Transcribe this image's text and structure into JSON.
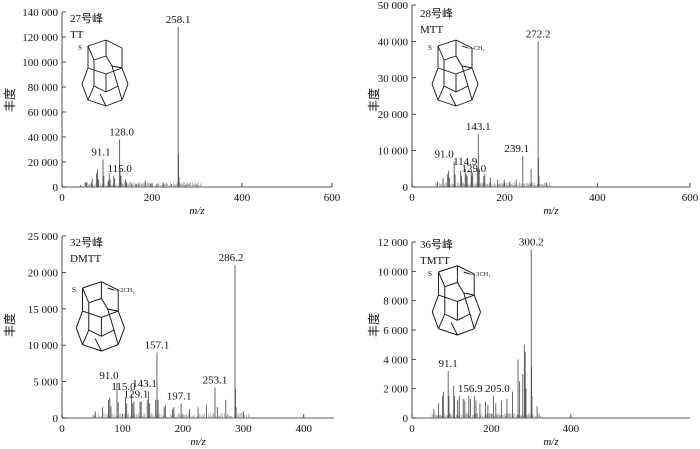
{
  "chart_data": [
    {
      "type": "bar",
      "peak_label": "27号峰",
      "compound": "TT",
      "substituent": "",
      "xlabel": "m/z",
      "ylabel": "丰度",
      "xlim": [
        0,
        600
      ],
      "ylim": [
        0,
        140000
      ],
      "xticks": [
        0,
        200,
        400,
        600
      ],
      "yticks": [
        0,
        20000,
        40000,
        60000,
        80000,
        100000,
        120000,
        140000
      ],
      "ytick_labels": [
        "0",
        "20 000",
        "40 000",
        "60 000",
        "80 000",
        "100 000",
        "120 000",
        "140 000"
      ],
      "annotations": [
        {
          "label": "258.1",
          "x": 258.1,
          "y": 128000
        },
        {
          "label": "128.0",
          "x": 128.0,
          "y": 38000
        },
        {
          "label": "91.1",
          "x": 91.1,
          "y": 22000
        },
        {
          "label": "115.0",
          "x": 115.0,
          "y": 9000
        }
      ],
      "peaks": [
        {
          "x": 41,
          "y": 1500
        },
        {
          "x": 53,
          "y": 3000
        },
        {
          "x": 55,
          "y": 4000
        },
        {
          "x": 65,
          "y": 3500
        },
        {
          "x": 67,
          "y": 7000
        },
        {
          "x": 77,
          "y": 11000
        },
        {
          "x": 79,
          "y": 14000
        },
        {
          "x": 81,
          "y": 6000
        },
        {
          "x": 91.1,
          "y": 22000
        },
        {
          "x": 93,
          "y": 9000
        },
        {
          "x": 103,
          "y": 5000
        },
        {
          "x": 105,
          "y": 11000
        },
        {
          "x": 107,
          "y": 6000
        },
        {
          "x": 115.0,
          "y": 9000
        },
        {
          "x": 117,
          "y": 7000
        },
        {
          "x": 128.0,
          "y": 38000
        },
        {
          "x": 129,
          "y": 15000
        },
        {
          "x": 131,
          "y": 9000
        },
        {
          "x": 141,
          "y": 6000
        },
        {
          "x": 143,
          "y": 4000
        },
        {
          "x": 155,
          "y": 3000
        },
        {
          "x": 165,
          "y": 2500
        },
        {
          "x": 171,
          "y": 2000
        },
        {
          "x": 185,
          "y": 5000
        },
        {
          "x": 197,
          "y": 2500
        },
        {
          "x": 211,
          "y": 2000
        },
        {
          "x": 225,
          "y": 3000
        },
        {
          "x": 243,
          "y": 2500
        },
        {
          "x": 258.1,
          "y": 128000
        },
        {
          "x": 259,
          "y": 26000
        },
        {
          "x": 260,
          "y": 8000
        },
        {
          "x": 275,
          "y": 1500
        },
        {
          "x": 300,
          "y": 1200
        }
      ]
    },
    {
      "type": "bar",
      "peak_label": "28号峰",
      "compound": "MTT",
      "substituent": "—CH₃",
      "xlabel": "m/z",
      "ylabel": "丰度",
      "xlim": [
        0,
        600
      ],
      "ylim": [
        0,
        50000
      ],
      "xticks": [
        0,
        200,
        400,
        600
      ],
      "yticks": [
        0,
        10000,
        20000,
        30000,
        40000,
        50000
      ],
      "ytick_labels": [
        "0",
        "10 000",
        "20 000",
        "30 000",
        "40 000",
        "50 000"
      ],
      "annotations": [
        {
          "label": "272.2",
          "x": 272.2,
          "y": 40000
        },
        {
          "label": "143.1",
          "x": 143.1,
          "y": 14500
        },
        {
          "label": "239.1",
          "x": 239.1,
          "y": 8500
        },
        {
          "label": "91.0",
          "x": 91.0,
          "y": 7000
        },
        {
          "label": "114.9",
          "x": 114.9,
          "y": 5000
        },
        {
          "label": "129.0",
          "x": 129.0,
          "y": 3000
        }
      ],
      "peaks": [
        {
          "x": 55,
          "y": 1500
        },
        {
          "x": 67,
          "y": 2500
        },
        {
          "x": 77,
          "y": 3500
        },
        {
          "x": 79,
          "y": 4500
        },
        {
          "x": 81,
          "y": 2500
        },
        {
          "x": 91.0,
          "y": 7000
        },
        {
          "x": 93,
          "y": 3500
        },
        {
          "x": 105,
          "y": 4500
        },
        {
          "x": 107,
          "y": 3000
        },
        {
          "x": 114.9,
          "y": 5000
        },
        {
          "x": 117,
          "y": 3500
        },
        {
          "x": 119,
          "y": 3000
        },
        {
          "x": 128,
          "y": 5000
        },
        {
          "x": 129.0,
          "y": 3000
        },
        {
          "x": 131,
          "y": 4000
        },
        {
          "x": 141,
          "y": 5000
        },
        {
          "x": 143.1,
          "y": 14500
        },
        {
          "x": 145,
          "y": 5000
        },
        {
          "x": 155,
          "y": 3000
        },
        {
          "x": 157,
          "y": 3500
        },
        {
          "x": 169,
          "y": 2500
        },
        {
          "x": 185,
          "y": 2000
        },
        {
          "x": 199,
          "y": 2000
        },
        {
          "x": 211,
          "y": 1500
        },
        {
          "x": 225,
          "y": 2000
        },
        {
          "x": 239.1,
          "y": 8500
        },
        {
          "x": 257,
          "y": 5000
        },
        {
          "x": 272.2,
          "y": 40000
        },
        {
          "x": 273,
          "y": 8000
        },
        {
          "x": 274,
          "y": 3000
        },
        {
          "x": 290,
          "y": 1200
        }
      ]
    },
    {
      "type": "bar",
      "peak_label": "32号峰",
      "compound": "DMTT",
      "substituent": "—2CH₃",
      "xlabel": "m/z",
      "ylabel": "丰度",
      "xlim": [
        0,
        450
      ],
      "ylim": [
        0,
        25000
      ],
      "xticks": [
        0,
        100,
        200,
        300,
        400
      ],
      "yticks": [
        0,
        5000,
        10000,
        15000,
        20000,
        25000
      ],
      "ytick_labels": [
        "0",
        "5 000",
        "10 000",
        "15 000",
        "20 000",
        "25 000"
      ],
      "annotations": [
        {
          "label": "286.2",
          "x": 286.2,
          "y": 21000
        },
        {
          "label": "157.1",
          "x": 157.1,
          "y": 9000
        },
        {
          "label": "91.0",
          "x": 91.0,
          "y": 4800
        },
        {
          "label": "143.1",
          "x": 143.1,
          "y": 3700
        },
        {
          "label": "253.1",
          "x": 253.1,
          "y": 4200
        },
        {
          "label": "115.0",
          "x": 115.0,
          "y": 3300
        },
        {
          "label": "129.1",
          "x": 129.1,
          "y": 2300
        },
        {
          "label": "197.1",
          "x": 197.1,
          "y": 2000
        }
      ],
      "peaks": [
        {
          "x": 55,
          "y": 900
        },
        {
          "x": 67,
          "y": 1500
        },
        {
          "x": 77,
          "y": 2500
        },
        {
          "x": 79,
          "y": 2800
        },
        {
          "x": 81,
          "y": 1600
        },
        {
          "x": 91.0,
          "y": 4800
        },
        {
          "x": 93,
          "y": 2200
        },
        {
          "x": 105,
          "y": 2800
        },
        {
          "x": 107,
          "y": 2000
        },
        {
          "x": 115.0,
          "y": 3300
        },
        {
          "x": 117,
          "y": 2000
        },
        {
          "x": 119,
          "y": 2300
        },
        {
          "x": 129.1,
          "y": 2300
        },
        {
          "x": 131,
          "y": 2200
        },
        {
          "x": 141,
          "y": 2500
        },
        {
          "x": 143.1,
          "y": 3700
        },
        {
          "x": 145,
          "y": 2000
        },
        {
          "x": 155,
          "y": 2500
        },
        {
          "x": 157.1,
          "y": 9000
        },
        {
          "x": 159,
          "y": 2500
        },
        {
          "x": 169,
          "y": 1500
        },
        {
          "x": 171,
          "y": 1800
        },
        {
          "x": 183,
          "y": 1200
        },
        {
          "x": 185,
          "y": 1500
        },
        {
          "x": 197.1,
          "y": 2000
        },
        {
          "x": 211,
          "y": 1200
        },
        {
          "x": 225,
          "y": 1500
        },
        {
          "x": 239,
          "y": 1800
        },
        {
          "x": 253.1,
          "y": 4200
        },
        {
          "x": 257,
          "y": 1500
        },
        {
          "x": 271,
          "y": 2500
        },
        {
          "x": 286.2,
          "y": 21000
        },
        {
          "x": 287,
          "y": 4000
        },
        {
          "x": 288,
          "y": 1500
        },
        {
          "x": 300,
          "y": 900
        }
      ]
    },
    {
      "type": "bar",
      "peak_label": "36号峰",
      "compound": "TMTT",
      "substituent": "—3CH₃",
      "xlabel": "m/z",
      "ylabel": "丰度",
      "xlim": [
        0,
        700
      ],
      "ylim": [
        0,
        12000
      ],
      "xticks": [
        0,
        200,
        400
      ],
      "yticks": [
        0,
        2000,
        4000,
        6000,
        8000,
        10000,
        12000
      ],
      "ytick_labels": [
        "0",
        "2 000",
        "4 000",
        "6 000",
        "8 000",
        "10 000",
        "12 000"
      ],
      "annotations": [
        {
          "label": "300.2",
          "x": 300.2,
          "y": 11500
        },
        {
          "label": "91.1",
          "x": 91.1,
          "y": 3200
        },
        {
          "label": "156.9",
          "x": 156.9,
          "y": 1500
        },
        {
          "label": "205.0",
          "x": 205.0,
          "y": 1500
        }
      ],
      "peaks": [
        {
          "x": 55,
          "y": 600
        },
        {
          "x": 67,
          "y": 1000
        },
        {
          "x": 77,
          "y": 1500
        },
        {
          "x": 79,
          "y": 1800
        },
        {
          "x": 91.1,
          "y": 3200
        },
        {
          "x": 93,
          "y": 1500
        },
        {
          "x": 105,
          "y": 2200
        },
        {
          "x": 107,
          "y": 1500
        },
        {
          "x": 115,
          "y": 1200
        },
        {
          "x": 119,
          "y": 1500
        },
        {
          "x": 129,
          "y": 1300
        },
        {
          "x": 133,
          "y": 1200
        },
        {
          "x": 143,
          "y": 1500
        },
        {
          "x": 147,
          "y": 1300
        },
        {
          "x": 156.9,
          "y": 1500
        },
        {
          "x": 161,
          "y": 1200
        },
        {
          "x": 171,
          "y": 1000
        },
        {
          "x": 185,
          "y": 1100
        },
        {
          "x": 191,
          "y": 900
        },
        {
          "x": 205.0,
          "y": 1500
        },
        {
          "x": 211,
          "y": 1000
        },
        {
          "x": 225,
          "y": 1200
        },
        {
          "x": 239,
          "y": 1300
        },
        {
          "x": 253,
          "y": 1800
        },
        {
          "x": 267,
          "y": 4000
        },
        {
          "x": 271,
          "y": 2500
        },
        {
          "x": 279,
          "y": 3000
        },
        {
          "x": 283,
          "y": 5000
        },
        {
          "x": 285,
          "y": 4500
        },
        {
          "x": 287,
          "y": 2000
        },
        {
          "x": 300.2,
          "y": 11500
        },
        {
          "x": 301,
          "y": 3500
        },
        {
          "x": 302,
          "y": 1500
        },
        {
          "x": 315,
          "y": 800
        }
      ]
    }
  ]
}
